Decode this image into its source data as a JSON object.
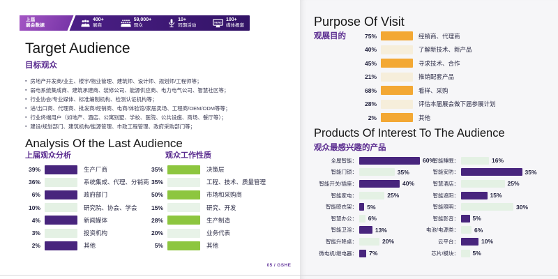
{
  "colors": {
    "header_purple": "#3b1a70",
    "tab_purple": "#8a3fa8",
    "accent_purple": "#48257d",
    "pale_green": "#e4f1e4",
    "lime_green": "#8dc63f",
    "orange": "#f3a834",
    "pale_cream": "#f6eedb",
    "subtitle_purple": "#5b2d90"
  },
  "header_bar": {
    "tab": {
      "line1": "上届",
      "line2": "展会数据"
    },
    "stats": [
      {
        "icon": "exhibitors-icon",
        "value": "400+",
        "label": "展商"
      },
      {
        "icon": "visitors-icon",
        "value": "59,000+",
        "label": "观众"
      },
      {
        "icon": "events-icon",
        "value": "10+",
        "label": "同期活动"
      },
      {
        "icon": "media-icon",
        "value": "100+",
        "label": "媒体报道"
      }
    ]
  },
  "target_audience": {
    "title": "Target Audience",
    "subtitle": "目标观众",
    "bullets": [
      "房地产开发商/业主、楼宇/物业管理、建筑师、设计师、规划师/工程师等；",
      "弱电系统集成商、建筑承建商、装修公司、能源供应商、电力电气公司、智慧社区等；",
      "行业协会/专业媒体、标准编制机构、检测认证机构等；",
      "进/出口商、代理商、批发商/经销商、电商/体验馆/家居卖场、工程商/OEM/ODM等等；",
      "行业终端用户（如地产、酒店、公寓别墅、学校、医院、公共设施、商场、餐厅等）；",
      "建设/规划部门、建筑机构/能源管理、市政工程管理、政府采购部门等；"
    ]
  },
  "analysis": {
    "title": "Analysis Of the Last Audience",
    "left": {
      "subtitle": "上届观众分析",
      "rows": [
        {
          "pct": "39%",
          "label": "生产厂商"
        },
        {
          "pct": "36%",
          "label": "系统集成、代理、分销商"
        },
        {
          "pct": "6%",
          "label": "政府部门"
        },
        {
          "pct": "10%",
          "label": "研究院、协会、学会"
        },
        {
          "pct": "4%",
          "label": "新闻媒体"
        },
        {
          "pct": "3%",
          "label": "投资机构"
        },
        {
          "pct": "2%",
          "label": "其他"
        }
      ]
    },
    "right": {
      "subtitle": "观众工作性质",
      "rows": [
        {
          "pct": "35%",
          "label": "决策层"
        },
        {
          "pct": "35%",
          "label": "工程、技术、质量管理"
        },
        {
          "pct": "50%",
          "label": "市场和采购商"
        },
        {
          "pct": "15%",
          "label": "研究、开发"
        },
        {
          "pct": "28%",
          "label": "生产制造"
        },
        {
          "pct": "20%",
          "label": "业务代表"
        },
        {
          "pct": "5%",
          "label": "其他"
        }
      ]
    }
  },
  "purpose": {
    "title": "Purpose Of Visit",
    "subtitle": "观展目的",
    "rows": [
      {
        "pct": "75%",
        "label": "经销商、代理商"
      },
      {
        "pct": "40%",
        "label": "了解新技术、新产品"
      },
      {
        "pct": "45%",
        "label": "寻求技术、合作"
      },
      {
        "pct": "21%",
        "label": "推销配套产品"
      },
      {
        "pct": "68%",
        "label": "看样、采购"
      },
      {
        "pct": "28%",
        "label": "评估本届展会做下届参展计划"
      },
      {
        "pct": "2%",
        "label": "其他"
      }
    ]
  },
  "products": {
    "title": "Products Of Interest To The Audience",
    "subtitle": "观众最感兴趣的产品",
    "left_rows": [
      {
        "label": "全屋智能：",
        "pct": 60,
        "pct_label": "60%"
      },
      {
        "label": "智能门锁：",
        "pct": 35,
        "pct_label": "35%"
      },
      {
        "label": "智能开关/插座：",
        "pct": 40,
        "pct_label": "40%"
      },
      {
        "label": "智能家电：",
        "pct": 25,
        "pct_label": "25%"
      },
      {
        "label": "智能晾衣架：",
        "pct": 5,
        "pct_label": "5%"
      },
      {
        "label": "智慧办公：",
        "pct": 6,
        "pct_label": "6%"
      },
      {
        "label": "智能卫浴：",
        "pct": 13,
        "pct_label": "13%"
      },
      {
        "label": "智能升降桌：",
        "pct": 20,
        "pct_label": "20%"
      },
      {
        "label": "微电机/继电器：",
        "pct": 7,
        "pct_label": "7%"
      }
    ],
    "right_rows": [
      {
        "label": "智能睡眠：",
        "pct": 16,
        "pct_label": "16%"
      },
      {
        "label": "智能安防：",
        "pct": 35,
        "pct_label": "35%"
      },
      {
        "label": "智慧酒店：",
        "pct": 25,
        "pct_label": "25%"
      },
      {
        "label": "智能遮阳：",
        "pct": 15,
        "pct_label": "15%"
      },
      {
        "label": "智能照明：",
        "pct": 30,
        "pct_label": "30%"
      },
      {
        "label": "智能影音：",
        "pct": 5,
        "pct_label": "5%"
      },
      {
        "label": "电池/电源类：",
        "pct": 6,
        "pct_label": "6%"
      },
      {
        "label": "云平台：",
        "pct": 10,
        "pct_label": "10%"
      },
      {
        "label": "芯片/模块：",
        "pct": 5,
        "pct_label": "5%"
      }
    ]
  },
  "footer": {
    "page_label": "05 / GSHE"
  },
  "chart_data": [
    {
      "type": "bar",
      "title": "上届观众分析",
      "categories": [
        "生产厂商",
        "系统集成、代理、分销商",
        "政府部门",
        "研究院、协会、学会",
        "新闻媒体",
        "投资机构",
        "其他"
      ],
      "values": [
        39,
        36,
        6,
        10,
        4,
        3,
        2
      ],
      "unit": "%"
    },
    {
      "type": "bar",
      "title": "观众工作性质",
      "categories": [
        "决策层",
        "工程、技术、质量管理",
        "市场和采购商",
        "研究、开发",
        "生产制造",
        "业务代表",
        "其他"
      ],
      "values": [
        35,
        35,
        50,
        15,
        28,
        20,
        5
      ],
      "unit": "%"
    },
    {
      "type": "bar",
      "title": "观展目的",
      "categories": [
        "经销商、代理商",
        "了解新技术、新产品",
        "寻求技术、合作",
        "推销配套产品",
        "看样、采购",
        "评估本届展会做下届参展计划",
        "其他"
      ],
      "values": [
        75,
        40,
        45,
        21,
        68,
        28,
        2
      ],
      "unit": "%"
    },
    {
      "type": "bar",
      "title": "观众最感兴趣的产品",
      "categories": [
        "全屋智能",
        "智能门锁",
        "智能开关/插座",
        "智能家电",
        "智能晾衣架",
        "智慧办公",
        "智能卫浴",
        "智能升降桌",
        "微电机/继电器",
        "智能睡眠",
        "智能安防",
        "智慧酒店",
        "智能遮阳",
        "智能照明",
        "智能影音",
        "电池/电源类",
        "云平台",
        "芯片/模块"
      ],
      "values": [
        60,
        35,
        40,
        25,
        5,
        6,
        13,
        20,
        7,
        16,
        35,
        25,
        15,
        30,
        5,
        6,
        10,
        5
      ],
      "unit": "%"
    }
  ]
}
